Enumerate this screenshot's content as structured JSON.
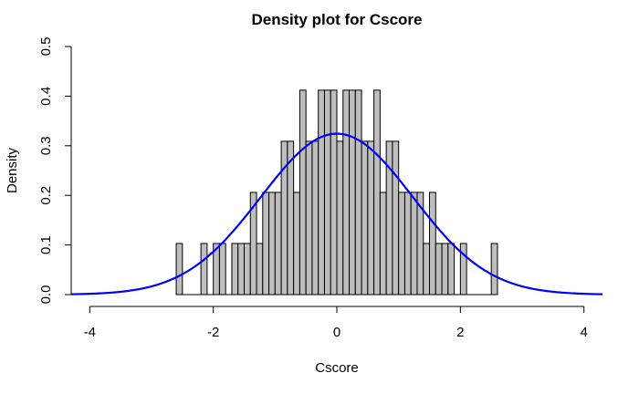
{
  "chart_data": {
    "type": "bar",
    "title": "Density plot for Cscore",
    "xlabel": "Cscore",
    "ylabel": "Density",
    "xlim": [
      -4.3,
      4.3
    ],
    "ylim": [
      0,
      0.5
    ],
    "x_ticks": [
      -4,
      -2,
      0,
      2,
      4
    ],
    "y_ticks": [
      0.0,
      0.1,
      0.2,
      0.3,
      0.4,
      0.5
    ],
    "y_tick_labels": [
      "0.0",
      "0.1",
      "0.2",
      "0.3",
      "0.4",
      "0.5"
    ],
    "bin_width": 0.1,
    "bins": [
      {
        "start": -2.6,
        "density": 0.103
      },
      {
        "start": -2.5,
        "density": 0
      },
      {
        "start": -2.4,
        "density": 0
      },
      {
        "start": -2.3,
        "density": 0
      },
      {
        "start": -2.2,
        "density": 0.103
      },
      {
        "start": -2.1,
        "density": 0
      },
      {
        "start": -2.0,
        "density": 0.103
      },
      {
        "start": -1.9,
        "density": 0.103
      },
      {
        "start": -1.8,
        "density": 0
      },
      {
        "start": -1.7,
        "density": 0.103
      },
      {
        "start": -1.6,
        "density": 0.103
      },
      {
        "start": -1.5,
        "density": 0.103
      },
      {
        "start": -1.4,
        "density": 0.206
      },
      {
        "start": -1.3,
        "density": 0.103
      },
      {
        "start": -1.2,
        "density": 0.206
      },
      {
        "start": -1.1,
        "density": 0.206
      },
      {
        "start": -1.0,
        "density": 0.206
      },
      {
        "start": -0.9,
        "density": 0.309
      },
      {
        "start": -0.8,
        "density": 0.309
      },
      {
        "start": -0.7,
        "density": 0.206
      },
      {
        "start": -0.6,
        "density": 0.412
      },
      {
        "start": -0.5,
        "density": 0.309
      },
      {
        "start": -0.4,
        "density": 0.309
      },
      {
        "start": -0.3,
        "density": 0.412
      },
      {
        "start": -0.2,
        "density": 0.412
      },
      {
        "start": -0.1,
        "density": 0.412
      },
      {
        "start": 0.0,
        "density": 0.309
      },
      {
        "start": 0.1,
        "density": 0.412
      },
      {
        "start": 0.2,
        "density": 0.412
      },
      {
        "start": 0.3,
        "density": 0.412
      },
      {
        "start": 0.4,
        "density": 0.309
      },
      {
        "start": 0.5,
        "density": 0.309
      },
      {
        "start": 0.6,
        "density": 0.412
      },
      {
        "start": 0.7,
        "density": 0.206
      },
      {
        "start": 0.8,
        "density": 0.309
      },
      {
        "start": 0.9,
        "density": 0.309
      },
      {
        "start": 1.0,
        "density": 0.206
      },
      {
        "start": 1.1,
        "density": 0.206
      },
      {
        "start": 1.2,
        "density": 0.206
      },
      {
        "start": 1.3,
        "density": 0.206
      },
      {
        "start": 1.4,
        "density": 0.103
      },
      {
        "start": 1.5,
        "density": 0.206
      },
      {
        "start": 1.6,
        "density": 0.103
      },
      {
        "start": 1.7,
        "density": 0.103
      },
      {
        "start": 1.8,
        "density": 0.103
      },
      {
        "start": 1.9,
        "density": 0
      },
      {
        "start": 2.0,
        "density": 0.103
      },
      {
        "start": 2.1,
        "density": 0
      },
      {
        "start": 2.2,
        "density": 0
      },
      {
        "start": 2.3,
        "density": 0
      },
      {
        "start": 2.4,
        "density": 0
      },
      {
        "start": 2.5,
        "density": 0.103
      }
    ],
    "curve": {
      "kind": "normal density",
      "mean": 0,
      "sd": 1.23,
      "x_range": [
        -4.3,
        4.3
      ],
      "color": "#0000ff"
    },
    "colors": {
      "bar_fill": "#bebebe",
      "bar_stroke": "#000000",
      "curve": "#0000ff"
    },
    "grid": false
  }
}
